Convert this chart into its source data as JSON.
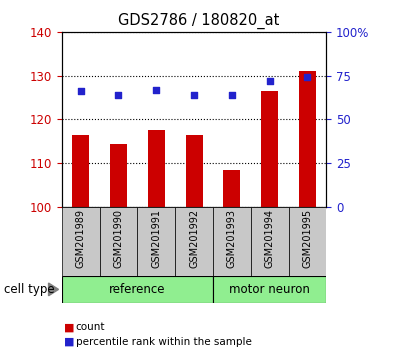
{
  "title": "GDS2786 / 180820_at",
  "samples": [
    "GSM201989",
    "GSM201990",
    "GSM201991",
    "GSM201992",
    "GSM201993",
    "GSM201994",
    "GSM201995"
  ],
  "bar_values": [
    116.5,
    114.5,
    117.5,
    116.5,
    108.5,
    126.5,
    131.0
  ],
  "percentile_values": [
    66,
    64,
    67,
    64,
    64,
    72,
    74
  ],
  "ylim_left": [
    100,
    140
  ],
  "ylim_right": [
    0,
    100
  ],
  "yticks_left": [
    100,
    110,
    120,
    130,
    140
  ],
  "ytick_labels_left": [
    "100",
    "110",
    "120",
    "130",
    "140"
  ],
  "yticks_right": [
    0,
    25,
    50,
    75,
    100
  ],
  "ytick_labels_right": [
    "0",
    "25",
    "50",
    "75",
    "100%"
  ],
  "bar_color": "#cc0000",
  "dot_color": "#2222cc",
  "bar_bottom": 100,
  "group_ref_count": 4,
  "group_mot_count": 3,
  "group_ref_label": "reference",
  "group_mot_label": "motor neuron",
  "group_color": "#90ee90",
  "cell_type_label": "cell type",
  "legend_count_label": "count",
  "legend_pct_label": "percentile rank within the sample",
  "left_tick_color": "#cc0000",
  "right_tick_color": "#2222cc",
  "xticklabel_bg": "#c8c8c8",
  "bar_width": 0.45
}
